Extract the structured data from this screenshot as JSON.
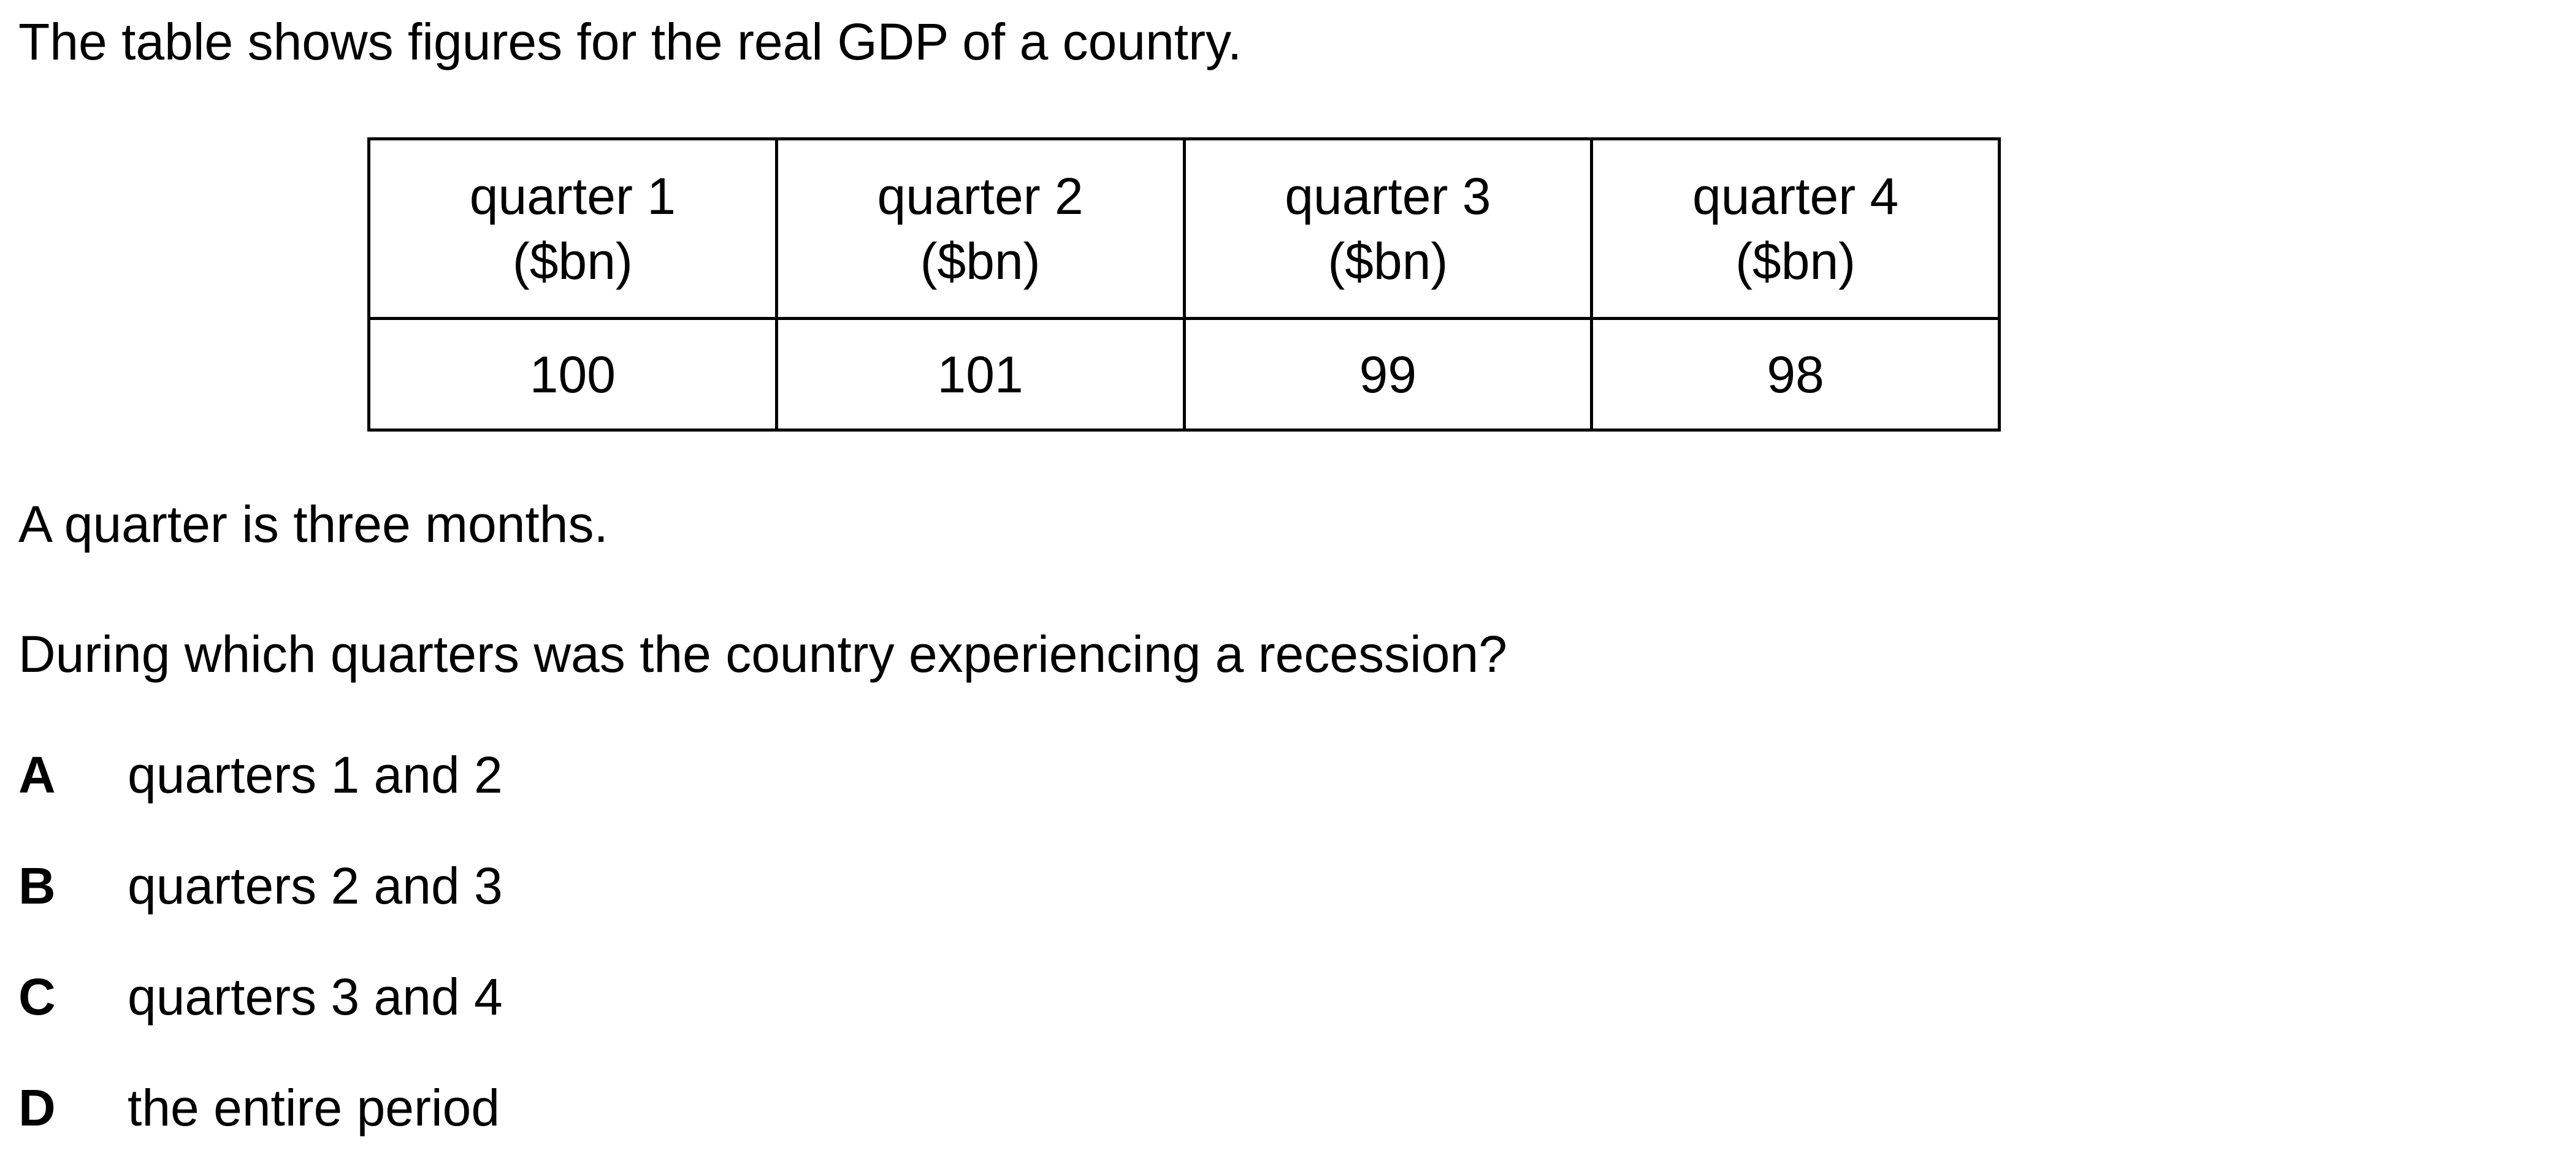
{
  "intro": "The table shows figures for the real GDP of a country.",
  "table": {
    "headers": [
      {
        "line1": "quarter 1",
        "line2": "($bn)"
      },
      {
        "line1": "quarter 2",
        "line2": "($bn)"
      },
      {
        "line1": "quarter 3",
        "line2": "($bn)"
      },
      {
        "line1": "quarter 4",
        "line2": "($bn)"
      }
    ],
    "values": [
      "100",
      "101",
      "99",
      "98"
    ]
  },
  "note": "A quarter is three months.",
  "question": "During which quarters was the country experiencing a recession?",
  "options": [
    {
      "letter": "A",
      "text": "quarters 1 and 2"
    },
    {
      "letter": "B",
      "text": "quarters 2 and 3"
    },
    {
      "letter": "C",
      "text": "quarters 3 and 4"
    },
    {
      "letter": "D",
      "text": "the entire period"
    }
  ]
}
